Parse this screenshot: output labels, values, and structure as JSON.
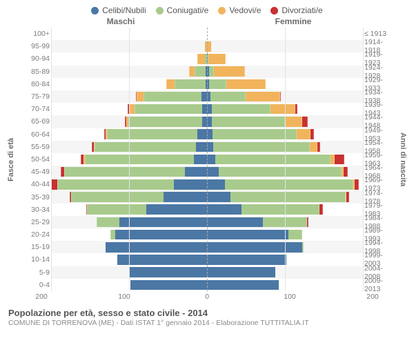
{
  "legend": {
    "items": [
      {
        "label": "Celibi/Nubili",
        "color": "#4b77a5"
      },
      {
        "label": "Coniugati/e",
        "color": "#a8cb8d"
      },
      {
        "label": "Vedovi/e",
        "color": "#f1b45c"
      },
      {
        "label": "Divorziati/e",
        "color": "#c93030"
      }
    ]
  },
  "headers": {
    "male": "Maschi",
    "female": "Femmine"
  },
  "axes": {
    "left_title": "Fasce di età",
    "right_title": "Anni di nascita",
    "xmax": 200,
    "xticks": [
      200,
      100,
      0,
      100,
      200
    ]
  },
  "colors": {
    "celibi": "#4b77a5",
    "coniugati": "#a8cb8d",
    "vedovi": "#f1b45c",
    "divorziati": "#c93030",
    "bg_alt": "#f5f5f5",
    "grid": "#e2e2e2",
    "center": "#aaaaaa",
    "text": "#6a6a6a"
  },
  "rows": [
    {
      "age": "100+",
      "birth": "≤ 1913",
      "m": [
        0,
        0,
        0,
        0
      ],
      "f": [
        0,
        0,
        0,
        0
      ]
    },
    {
      "age": "95-99",
      "birth": "1914-1918",
      "m": [
        0,
        0,
        3,
        0
      ],
      "f": [
        0,
        0,
        5,
        0
      ]
    },
    {
      "age": "90-94",
      "birth": "1919-1923",
      "m": [
        0,
        3,
        9,
        0
      ],
      "f": [
        1,
        1,
        22,
        0
      ]
    },
    {
      "age": "85-89",
      "birth": "1924-1928",
      "m": [
        2,
        14,
        7,
        0
      ],
      "f": [
        3,
        6,
        40,
        0
      ]
    },
    {
      "age": "80-84",
      "birth": "1929-1933",
      "m": [
        2,
        40,
        10,
        0
      ],
      "f": [
        3,
        22,
        50,
        0
      ]
    },
    {
      "age": "75-79",
      "birth": "1934-1938",
      "m": [
        7,
        74,
        9,
        1
      ],
      "f": [
        4,
        46,
        44,
        1
      ]
    },
    {
      "age": "70-74",
      "birth": "1939-1943",
      "m": [
        6,
        87,
        6,
        3
      ],
      "f": [
        6,
        75,
        32,
        3
      ]
    },
    {
      "age": "65-69",
      "birth": "1944-1948",
      "m": [
        6,
        95,
        3,
        1
      ],
      "f": [
        6,
        94,
        22,
        7
      ]
    },
    {
      "age": "60-64",
      "birth": "1949-1953",
      "m": [
        12,
        116,
        2,
        2
      ],
      "f": [
        7,
        108,
        18,
        4
      ]
    },
    {
      "age": "55-59",
      "birth": "1954-1958",
      "m": [
        14,
        130,
        1,
        3
      ],
      "f": [
        8,
        124,
        10,
        3
      ]
    },
    {
      "age": "50-54",
      "birth": "1959-1963",
      "m": [
        17,
        140,
        1,
        4
      ],
      "f": [
        11,
        147,
        6,
        12
      ]
    },
    {
      "age": "45-49",
      "birth": "1964-1968",
      "m": [
        28,
        155,
        0,
        5
      ],
      "f": [
        15,
        158,
        2,
        6
      ]
    },
    {
      "age": "40-44",
      "birth": "1969-1973",
      "m": [
        44,
        156,
        0,
        8
      ],
      "f": [
        23,
        165,
        1,
        6
      ]
    },
    {
      "age": "35-39",
      "birth": "1974-1978",
      "m": [
        56,
        118,
        0,
        2
      ],
      "f": [
        30,
        148,
        1,
        3
      ]
    },
    {
      "age": "30-34",
      "birth": "1979-1983",
      "m": [
        78,
        76,
        0,
        1
      ],
      "f": [
        44,
        100,
        0,
        5
      ]
    },
    {
      "age": "25-29",
      "birth": "1984-1988",
      "m": [
        112,
        30,
        0,
        0
      ],
      "f": [
        72,
        56,
        0,
        2
      ]
    },
    {
      "age": "20-24",
      "birth": "1989-1993",
      "m": [
        118,
        6,
        0,
        0
      ],
      "f": [
        104,
        18,
        0,
        0
      ]
    },
    {
      "age": "15-19",
      "birth": "1994-1998",
      "m": [
        130,
        0,
        0,
        0
      ],
      "f": [
        122,
        2,
        0,
        0
      ]
    },
    {
      "age": "10-14",
      "birth": "1999-2003",
      "m": [
        115,
        0,
        0,
        0
      ],
      "f": [
        102,
        0,
        0,
        0
      ]
    },
    {
      "age": "5-9",
      "birth": "2004-2008",
      "m": [
        100,
        0,
        0,
        0
      ],
      "f": [
        88,
        0,
        0,
        0
      ]
    },
    {
      "age": "0-4",
      "birth": "2009-2013",
      "m": [
        98,
        0,
        0,
        0
      ],
      "f": [
        92,
        0,
        0,
        0
      ]
    }
  ],
  "footer": {
    "title": "Popolazione per età, sesso e stato civile - 2014",
    "subtitle": "COMUNE DI TORRENOVA (ME) - Dati ISTAT 1° gennaio 2014 - Elaborazione TUTTITALIA.IT"
  }
}
